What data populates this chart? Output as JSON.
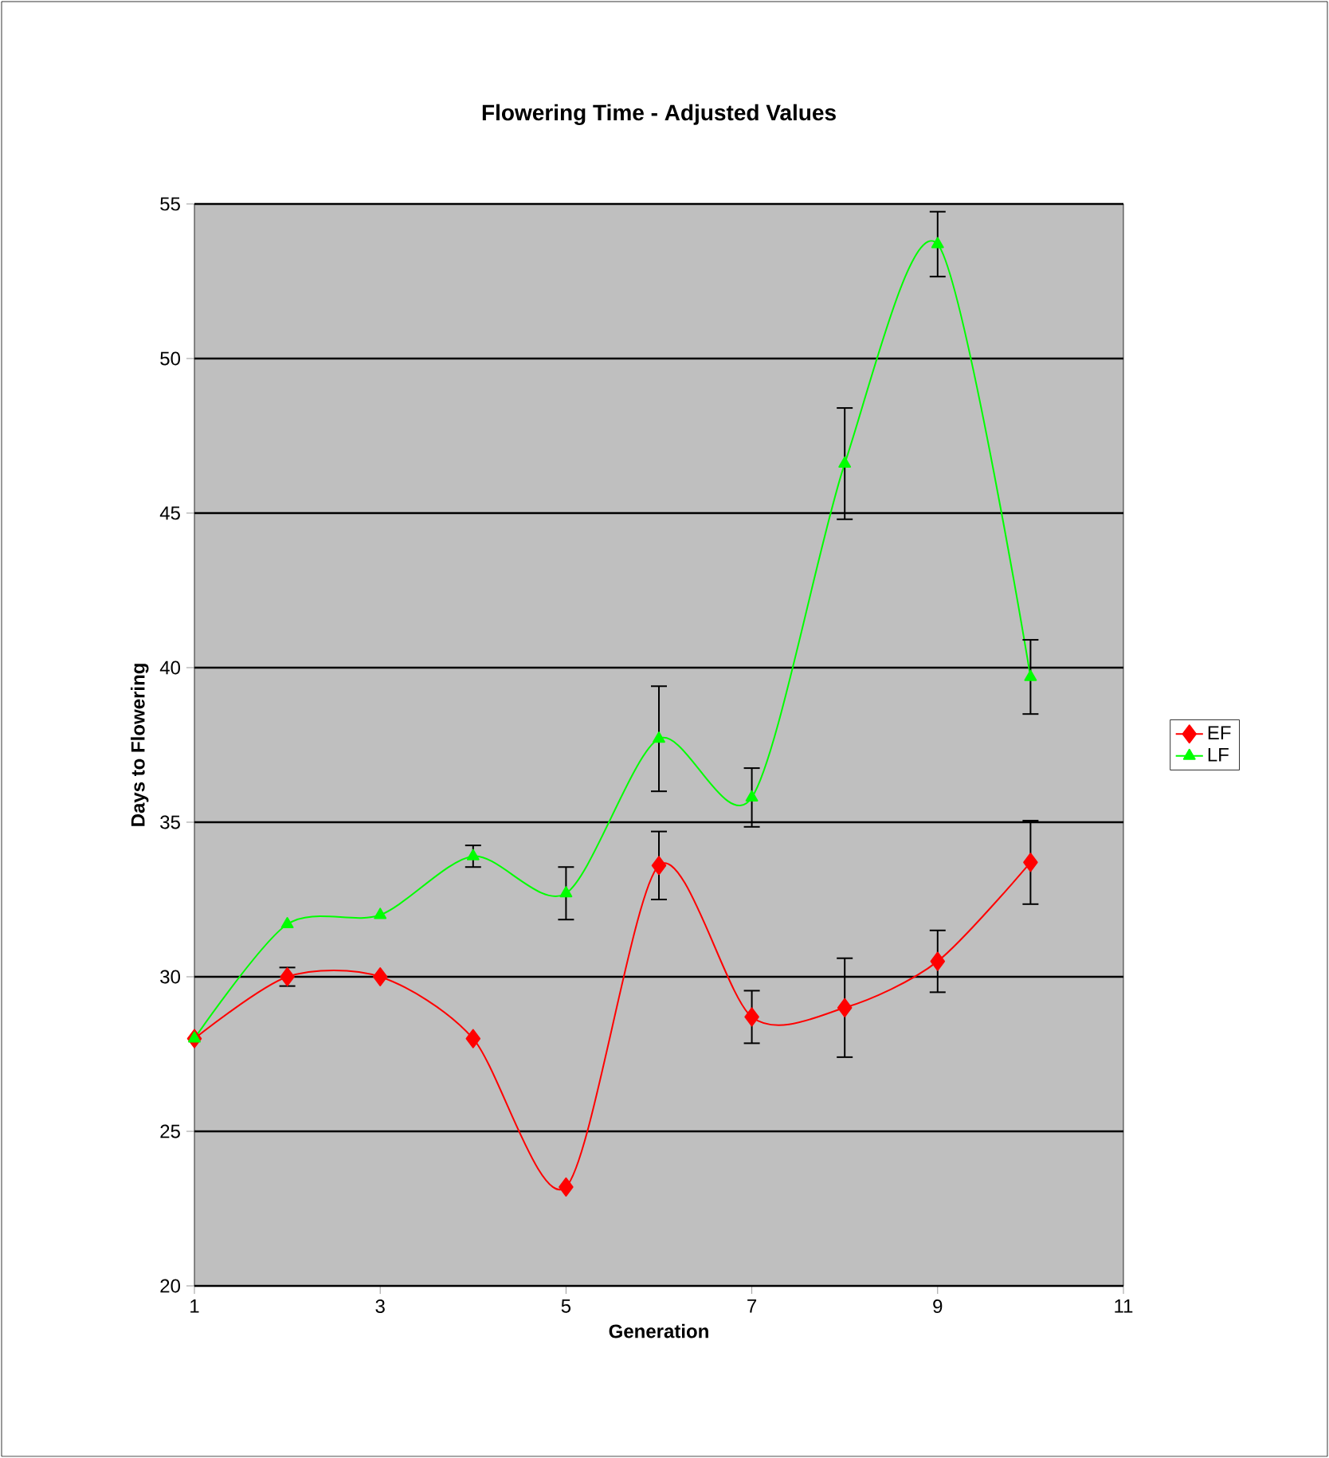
{
  "chart_data": {
    "type": "line",
    "title": "Flowering Time - Adjusted Values",
    "xlabel": "Generation",
    "ylabel": "Days to Flowering",
    "x": [
      1,
      2,
      3,
      4,
      5,
      6,
      7,
      8,
      9,
      10
    ],
    "series": [
      {
        "name": "EF",
        "color": "#ff0000",
        "marker": "diamond",
        "values": [
          28,
          30,
          30,
          28,
          23.2,
          33.6,
          28.7,
          29.0,
          30.5,
          33.7
        ],
        "errors": [
          null,
          0.3,
          null,
          null,
          null,
          1.1,
          0.85,
          1.6,
          1.0,
          1.35
        ]
      },
      {
        "name": "LF",
        "color": "#00ff00",
        "marker": "triangle",
        "values": [
          28,
          31.7,
          32,
          33.9,
          32.7,
          37.7,
          35.8,
          46.6,
          53.7,
          39.7
        ],
        "errors": [
          null,
          null,
          null,
          0.35,
          0.85,
          1.7,
          0.95,
          1.8,
          1.05,
          1.2
        ]
      }
    ],
    "xlim": [
      1,
      11
    ],
    "xticks": [
      1,
      3,
      5,
      7,
      9,
      11
    ],
    "ylim": [
      20,
      55
    ],
    "yticks": [
      20,
      25,
      30,
      35,
      40,
      45,
      50,
      55
    ],
    "grid": "y",
    "legend": "right"
  }
}
